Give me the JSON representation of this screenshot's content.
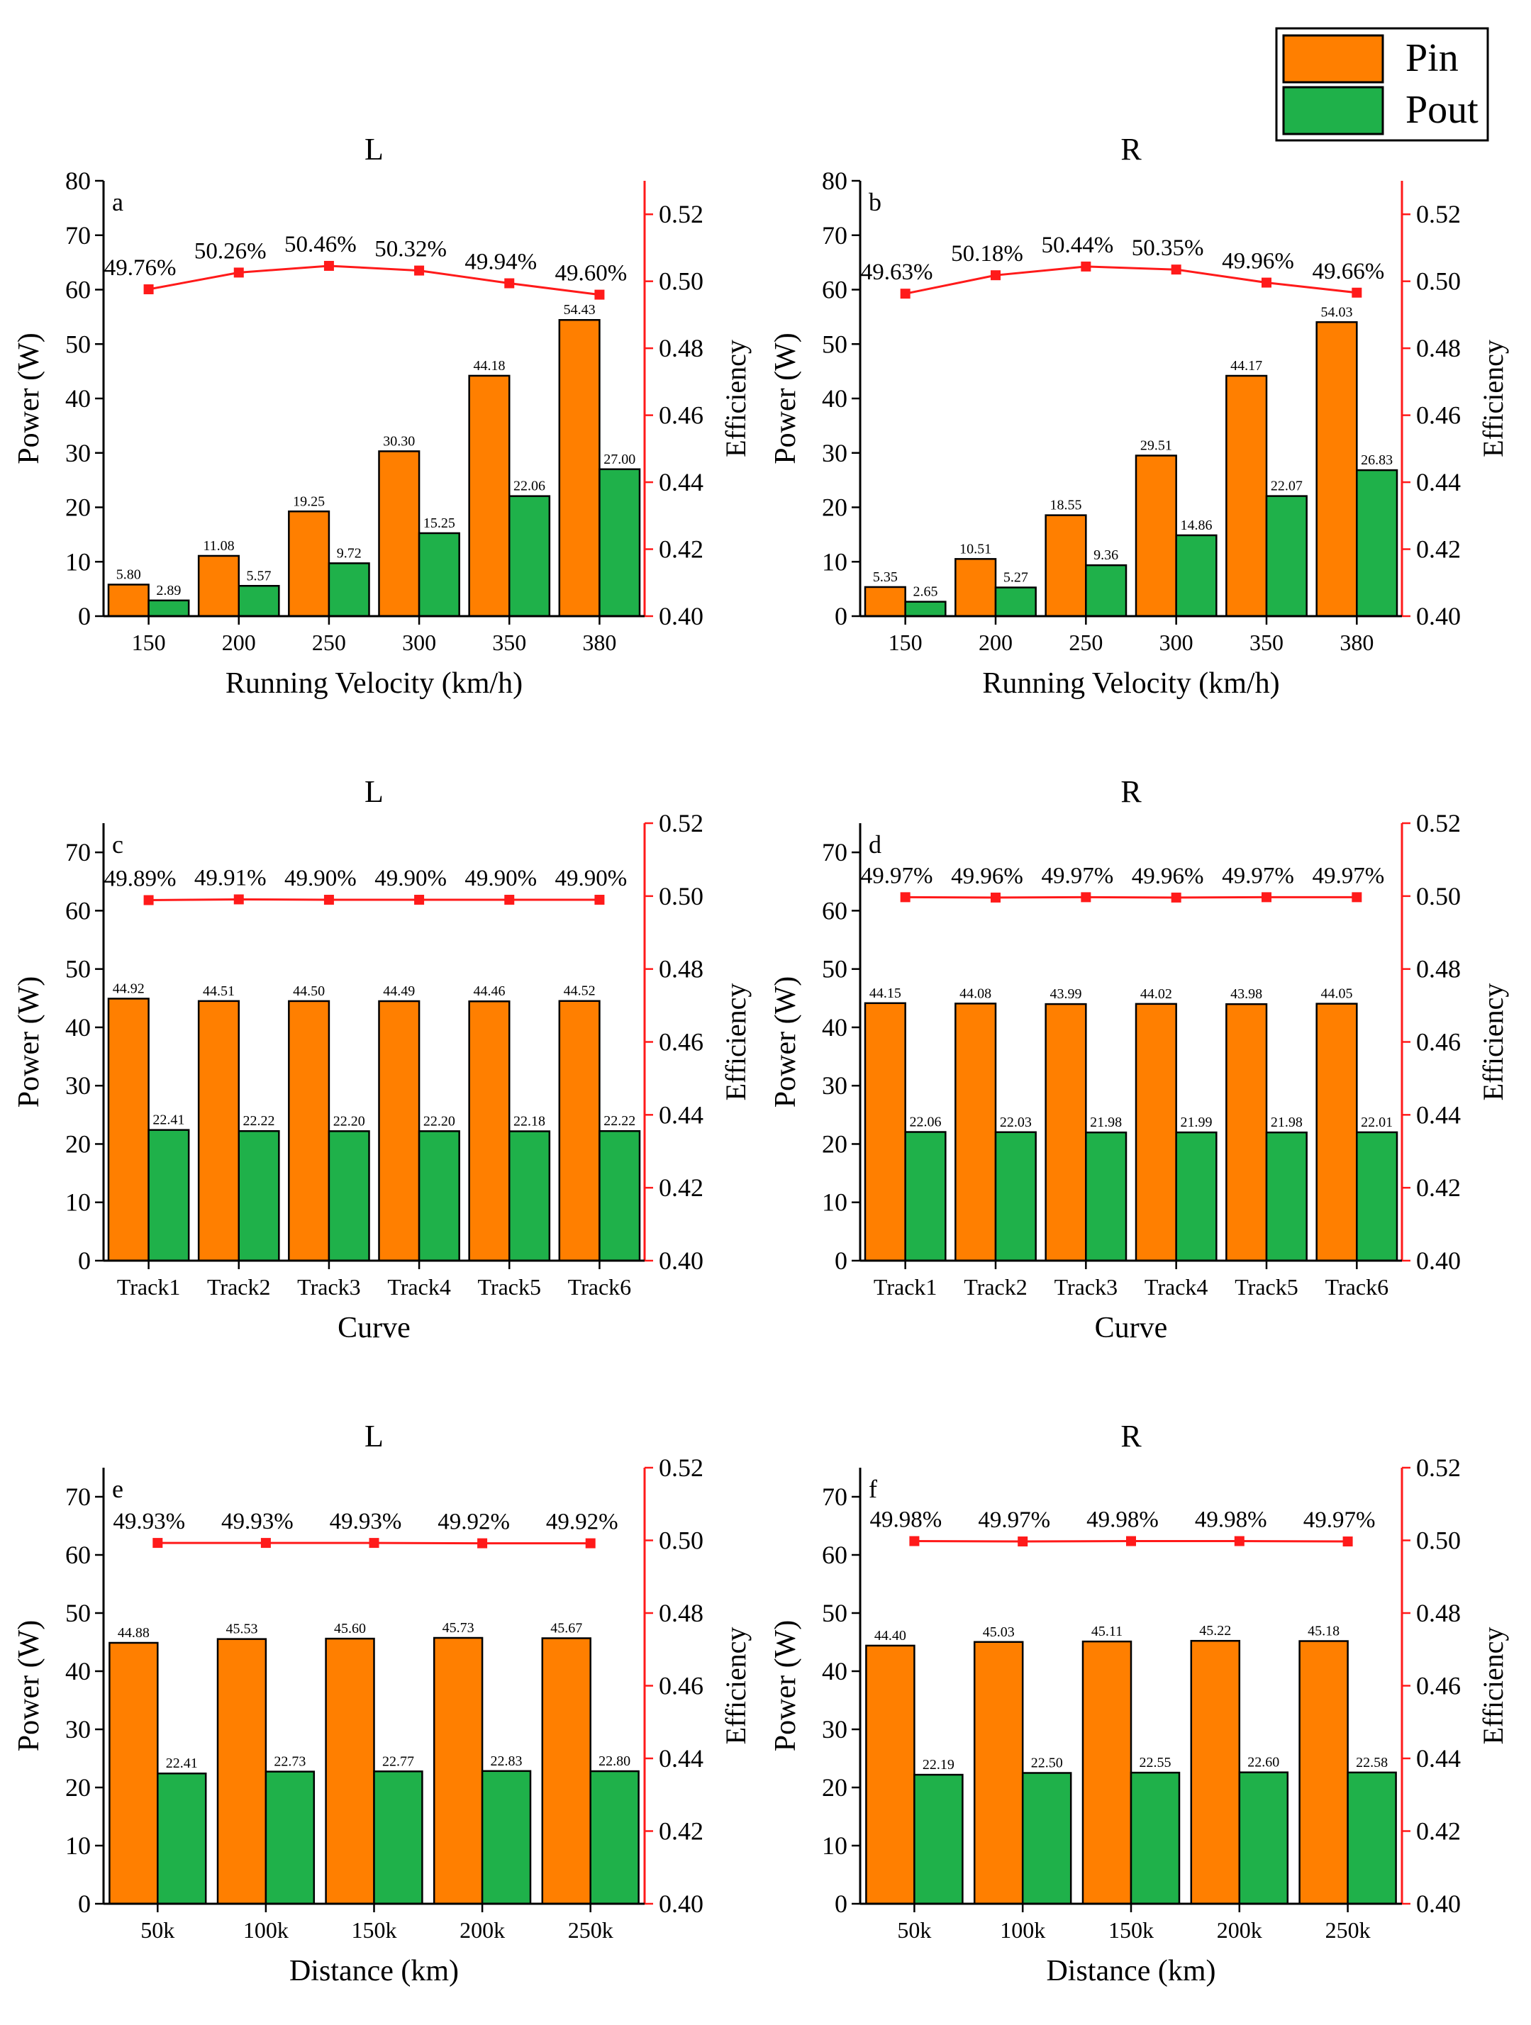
{
  "legend": {
    "position": "top-right",
    "items": [
      {
        "label": "Pin",
        "color": "#ff7f00"
      },
      {
        "label": "Pout",
        "color": "#1fb14a"
      }
    ]
  },
  "colors": {
    "pin": "#ff7f00",
    "pout": "#1fb14a",
    "efficiency": "#ff1a1a",
    "axis": "#000000"
  },
  "chart_data": [
    {
      "type": "bar",
      "panel": "a",
      "title": "L",
      "xlabel": "Running Velocity (km/h)",
      "ylabel": "Power (W)",
      "y2label": "Efficiency",
      "ylim": [
        0,
        80
      ],
      "yticks": [
        0,
        10,
        20,
        30,
        40,
        50,
        60,
        70,
        80
      ],
      "y2lim": [
        0.4,
        0.53
      ],
      "y2ticks": [
        "0.40",
        "0.42",
        "0.44",
        "0.46",
        "0.48",
        "0.50",
        "0.52"
      ],
      "categories": [
        "150",
        "200",
        "250",
        "300",
        "350",
        "380"
      ],
      "series": [
        {
          "name": "Pin",
          "values": [
            5.8,
            11.08,
            19.25,
            30.3,
            44.18,
            54.43
          ],
          "labels": [
            "5.80",
            "11.08",
            "19.25",
            "30.30",
            "44.18",
            "54.43"
          ]
        },
        {
          "name": "Pout",
          "values": [
            2.89,
            5.57,
            9.72,
            15.25,
            22.06,
            27.0
          ],
          "labels": [
            "2.89",
            "5.57",
            "9.72",
            "15.25",
            "22.06",
            "27.00"
          ]
        }
      ],
      "efficiency": {
        "values": [
          0.4976,
          0.5026,
          0.5046,
          0.5032,
          0.4994,
          0.496
        ],
        "labels": [
          "49.76%",
          "50.26%",
          "50.46%",
          "50.32%",
          "49.94%",
          "49.60%"
        ]
      }
    },
    {
      "type": "bar",
      "panel": "b",
      "title": "R",
      "xlabel": "Running Velocity (km/h)",
      "ylabel": "Power (W)",
      "y2label": "Efficiency",
      "ylim": [
        0,
        80
      ],
      "yticks": [
        0,
        10,
        20,
        30,
        40,
        50,
        60,
        70,
        80
      ],
      "y2lim": [
        0.4,
        0.53
      ],
      "y2ticks": [
        "0.40",
        "0.42",
        "0.44",
        "0.46",
        "0.48",
        "0.50",
        "0.52"
      ],
      "categories": [
        "150",
        "200",
        "250",
        "300",
        "350",
        "380"
      ],
      "series": [
        {
          "name": "Pin",
          "values": [
            5.35,
            10.51,
            18.55,
            29.51,
            44.17,
            54.03
          ],
          "labels": [
            "5.35",
            "10.51",
            "18.55",
            "29.51",
            "44.17",
            "54.03"
          ]
        },
        {
          "name": "Pout",
          "values": [
            2.65,
            5.27,
            9.36,
            14.86,
            22.07,
            26.83
          ],
          "labels": [
            "2.65",
            "5.27",
            "9.36",
            "14.86",
            "22.07",
            "26.83"
          ]
        }
      ],
      "efficiency": {
        "values": [
          0.4963,
          0.5018,
          0.5044,
          0.5035,
          0.4996,
          0.4966
        ],
        "labels": [
          "49.63%",
          "50.18%",
          "50.44%",
          "50.35%",
          "49.96%",
          "49.66%"
        ]
      }
    },
    {
      "type": "bar",
      "panel": "c",
      "title": "L",
      "xlabel": "Curve",
      "ylabel": "Power (W)",
      "y2label": "Efficiency",
      "ylim": [
        0,
        75
      ],
      "yticks": [
        0,
        10,
        20,
        30,
        40,
        50,
        60,
        70
      ],
      "y2lim": [
        0.4,
        0.52
      ],
      "y2ticks": [
        "0.40",
        "0.42",
        "0.44",
        "0.46",
        "0.48",
        "0.50",
        "0.52"
      ],
      "categories": [
        "Track1",
        "Track2",
        "Track3",
        "Track4",
        "Track5",
        "Track6"
      ],
      "series": [
        {
          "name": "Pin",
          "values": [
            44.92,
            44.51,
            44.5,
            44.49,
            44.46,
            44.52
          ],
          "labels": [
            "44.92",
            "44.51",
            "44.50",
            "44.49",
            "44.46",
            "44.52"
          ]
        },
        {
          "name": "Pout",
          "values": [
            22.41,
            22.22,
            22.2,
            22.2,
            22.18,
            22.22
          ],
          "labels": [
            "22.41",
            "22.22",
            "22.20",
            "22.20",
            "22.18",
            "22.22"
          ]
        }
      ],
      "efficiency": {
        "values": [
          0.4989,
          0.4991,
          0.499,
          0.499,
          0.499,
          0.499
        ],
        "labels": [
          "49.89%",
          "49.91%",
          "49.90%",
          "49.90%",
          "49.90%",
          "49.90%"
        ]
      }
    },
    {
      "type": "bar",
      "panel": "d",
      "title": "R",
      "xlabel": "Curve",
      "ylabel": "Power (W)",
      "y2label": "Efficiency",
      "ylim": [
        0,
        75
      ],
      "yticks": [
        0,
        10,
        20,
        30,
        40,
        50,
        60,
        70
      ],
      "y2lim": [
        0.4,
        0.52
      ],
      "y2ticks": [
        "0.40",
        "0.42",
        "0.44",
        "0.46",
        "0.48",
        "0.50",
        "0.52"
      ],
      "categories": [
        "Track1",
        "Track2",
        "Track3",
        "Track4",
        "Track5",
        "Track6"
      ],
      "series": [
        {
          "name": "Pin",
          "values": [
            44.15,
            44.08,
            43.99,
            44.02,
            43.98,
            44.05
          ],
          "labels": [
            "44.15",
            "44.08",
            "43.99",
            "44.02",
            "43.98",
            "44.05"
          ]
        },
        {
          "name": "Pout",
          "values": [
            22.06,
            22.03,
            21.98,
            21.99,
            21.98,
            22.01
          ],
          "labels": [
            "22.06",
            "22.03",
            "21.98",
            "21.99",
            "21.98",
            "22.01"
          ]
        }
      ],
      "efficiency": {
        "values": [
          0.4997,
          0.4996,
          0.4997,
          0.4996,
          0.4997,
          0.4997
        ],
        "labels": [
          "49.97%",
          "49.96%",
          "49.97%",
          "49.96%",
          "49.97%",
          "49.97%"
        ]
      }
    },
    {
      "type": "bar",
      "panel": "e",
      "title": "L",
      "xlabel": "Distance (km)",
      "ylabel": "Power (W)",
      "y2label": "Efficiency",
      "ylim": [
        0,
        75
      ],
      "yticks": [
        0,
        10,
        20,
        30,
        40,
        50,
        60,
        70
      ],
      "y2lim": [
        0.4,
        0.52
      ],
      "y2ticks": [
        "0.40",
        "0.42",
        "0.44",
        "0.46",
        "0.48",
        "0.50",
        "0.52"
      ],
      "categories": [
        "50k",
        "100k",
        "150k",
        "200k",
        "250k"
      ],
      "series": [
        {
          "name": "Pin",
          "values": [
            44.88,
            45.53,
            45.6,
            45.73,
            45.67
          ],
          "labels": [
            "44.88",
            "45.53",
            "45.60",
            "45.73",
            "45.67"
          ]
        },
        {
          "name": "Pout",
          "values": [
            22.41,
            22.73,
            22.77,
            22.83,
            22.8
          ],
          "labels": [
            "22.41",
            "22.73",
            "22.77",
            "22.83",
            "22.80"
          ]
        }
      ],
      "efficiency": {
        "values": [
          0.4993,
          0.4993,
          0.4993,
          0.4992,
          0.4992
        ],
        "labels": [
          "49.93%",
          "49.93%",
          "49.93%",
          "49.92%",
          "49.92%"
        ]
      }
    },
    {
      "type": "bar",
      "panel": "f",
      "title": "R",
      "xlabel": "Distance (km)",
      "ylabel": "Power (W)",
      "y2label": "Efficiency",
      "ylim": [
        0,
        75
      ],
      "yticks": [
        0,
        10,
        20,
        30,
        40,
        50,
        60,
        70
      ],
      "y2lim": [
        0.4,
        0.52
      ],
      "y2ticks": [
        "0.40",
        "0.42",
        "0.44",
        "0.46",
        "0.48",
        "0.50",
        "0.52"
      ],
      "categories": [
        "50k",
        "100k",
        "150k",
        "200k",
        "250k"
      ],
      "series": [
        {
          "name": "Pin",
          "values": [
            44.4,
            45.03,
            45.11,
            45.22,
            45.18
          ],
          "labels": [
            "44.40",
            "45.03",
            "45.11",
            "45.22",
            "45.18"
          ]
        },
        {
          "name": "Pout",
          "values": [
            22.19,
            22.5,
            22.55,
            22.6,
            22.58
          ],
          "labels": [
            "22.19",
            "22.50",
            "22.55",
            "22.60",
            "22.58"
          ]
        }
      ],
      "efficiency": {
        "values": [
          0.4998,
          0.4997,
          0.4998,
          0.4998,
          0.4997
        ],
        "labels": [
          "49.98%",
          "49.97%",
          "49.98%",
          "49.98%",
          "49.97%"
        ]
      }
    }
  ]
}
